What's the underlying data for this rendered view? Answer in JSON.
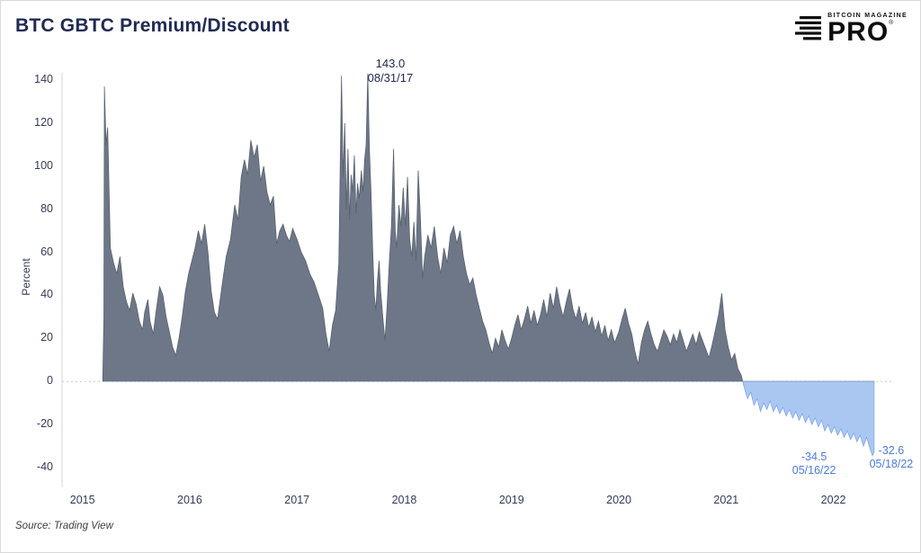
{
  "header": {
    "title": "BTC GBTC Premium/Discount"
  },
  "logo": {
    "brand": "BITCOIN MAGAZINE",
    "product": "PRO",
    "registered": "®"
  },
  "source": {
    "text": "Source: Trading View"
  },
  "chart_data": {
    "type": "area",
    "title": "BTC GBTC Premium/Discount",
    "xlabel": "",
    "ylabel": "Percent",
    "xlim": [
      2014.81,
      2022.54
    ],
    "ylim": [
      -40,
      140
    ],
    "yticks": [
      140,
      120,
      100,
      80,
      60,
      40,
      20,
      0,
      -20,
      -40
    ],
    "xticks": [
      2015,
      2016,
      2017,
      2018,
      2019,
      2020,
      2021,
      2022
    ],
    "grid": "zero-line-dotted",
    "legend": "none",
    "colors": {
      "positive_fill": "#6e7787",
      "positive_edge": "#59616f",
      "negative_fill": "#aac7f2",
      "negative_edge": "#7ea6e8",
      "annotation_dark": "#212a52",
      "annotation_blue": "#4d7cd6"
    },
    "annotations": [
      {
        "value_label": "143.0",
        "date_label": "08/31/17",
        "x": 2017.66,
        "y": 143,
        "color_key": "annotation_dark"
      },
      {
        "value_label": "-34.5",
        "date_label": "05/16/22",
        "x": 2022.365,
        "y": -34.5,
        "color_key": "annotation_blue"
      },
      {
        "value_label": "-32.6",
        "date_label": "05/18/22",
        "x": 2022.38,
        "y": -32.6,
        "color_key": "annotation_blue"
      }
    ],
    "points": [
      [
        2015.19,
        2
      ],
      [
        2015.2,
        30
      ],
      [
        2015.205,
        137
      ],
      [
        2015.22,
        110
      ],
      [
        2015.235,
        118
      ],
      [
        2015.26,
        62
      ],
      [
        2015.29,
        55
      ],
      [
        2015.32,
        50
      ],
      [
        2015.35,
        58
      ],
      [
        2015.38,
        44
      ],
      [
        2015.41,
        37
      ],
      [
        2015.44,
        33
      ],
      [
        2015.47,
        41
      ],
      [
        2015.5,
        36
      ],
      [
        2015.53,
        28
      ],
      [
        2015.56,
        24
      ],
      [
        2015.58,
        32
      ],
      [
        2015.61,
        38
      ],
      [
        2015.63,
        28
      ],
      [
        2015.66,
        22
      ],
      [
        2015.69,
        34
      ],
      [
        2015.72,
        44
      ],
      [
        2015.75,
        40
      ],
      [
        2015.78,
        30
      ],
      [
        2015.81,
        23
      ],
      [
        2015.84,
        16
      ],
      [
        2015.87,
        12
      ],
      [
        2015.9,
        20
      ],
      [
        2015.93,
        30
      ],
      [
        2015.96,
        42
      ],
      [
        2015.99,
        50
      ],
      [
        2016.02,
        56
      ],
      [
        2016.05,
        62
      ],
      [
        2016.08,
        70
      ],
      [
        2016.11,
        64
      ],
      [
        2016.14,
        73
      ],
      [
        2016.17,
        60
      ],
      [
        2016.2,
        42
      ],
      [
        2016.23,
        32
      ],
      [
        2016.26,
        29
      ],
      [
        2016.3,
        44
      ],
      [
        2016.34,
        58
      ],
      [
        2016.38,
        66
      ],
      [
        2016.42,
        82
      ],
      [
        2016.45,
        75
      ],
      [
        2016.48,
        95
      ],
      [
        2016.51,
        103
      ],
      [
        2016.54,
        96
      ],
      [
        2016.57,
        112
      ],
      [
        2016.6,
        104
      ],
      [
        2016.63,
        110
      ],
      [
        2016.66,
        93
      ],
      [
        2016.69,
        100
      ],
      [
        2016.72,
        88
      ],
      [
        2016.75,
        82
      ],
      [
        2016.78,
        86
      ],
      [
        2016.81,
        64
      ],
      [
        2016.84,
        70
      ],
      [
        2016.87,
        73
      ],
      [
        2016.9,
        68
      ],
      [
        2016.93,
        65
      ],
      [
        2016.96,
        71
      ],
      [
        2017.0,
        66
      ],
      [
        2017.04,
        60
      ],
      [
        2017.08,
        56
      ],
      [
        2017.12,
        50
      ],
      [
        2017.16,
        46
      ],
      [
        2017.2,
        40
      ],
      [
        2017.24,
        34
      ],
      [
        2017.27,
        22
      ],
      [
        2017.3,
        14
      ],
      [
        2017.33,
        26
      ],
      [
        2017.36,
        33
      ],
      [
        2017.39,
        55
      ],
      [
        2017.415,
        142
      ],
      [
        2017.43,
        95
      ],
      [
        2017.445,
        120
      ],
      [
        2017.46,
        80
      ],
      [
        2017.475,
        108
      ],
      [
        2017.49,
        75
      ],
      [
        2017.505,
        96
      ],
      [
        2017.52,
        88
      ],
      [
        2017.535,
        105
      ],
      [
        2017.55,
        78
      ],
      [
        2017.565,
        92
      ],
      [
        2017.58,
        85
      ],
      [
        2017.6,
        98
      ],
      [
        2017.615,
        88
      ],
      [
        2017.63,
        103
      ],
      [
        2017.645,
        110
      ],
      [
        2017.66,
        143
      ],
      [
        2017.675,
        108
      ],
      [
        2017.69,
        88
      ],
      [
        2017.705,
        62
      ],
      [
        2017.72,
        40
      ],
      [
        2017.735,
        33
      ],
      [
        2017.75,
        47
      ],
      [
        2017.765,
        56
      ],
      [
        2017.78,
        42
      ],
      [
        2017.8,
        30
      ],
      [
        2017.82,
        19
      ],
      [
        2017.84,
        35
      ],
      [
        2017.86,
        55
      ],
      [
        2017.88,
        72
      ],
      [
        2017.9,
        108
      ],
      [
        2017.915,
        70
      ],
      [
        2017.93,
        62
      ],
      [
        2017.95,
        82
      ],
      [
        2017.97,
        72
      ],
      [
        2017.99,
        90
      ],
      [
        2018.01,
        72
      ],
      [
        2018.03,
        95
      ],
      [
        2018.05,
        66
      ],
      [
        2018.07,
        58
      ],
      [
        2018.09,
        74
      ],
      [
        2018.11,
        56
      ],
      [
        2018.13,
        98
      ],
      [
        2018.15,
        76
      ],
      [
        2018.17,
        48
      ],
      [
        2018.19,
        58
      ],
      [
        2018.22,
        68
      ],
      [
        2018.25,
        62
      ],
      [
        2018.28,
        72
      ],
      [
        2018.31,
        58
      ],
      [
        2018.34,
        50
      ],
      [
        2018.37,
        62
      ],
      [
        2018.4,
        55
      ],
      [
        2018.43,
        68
      ],
      [
        2018.46,
        72
      ],
      [
        2018.49,
        64
      ],
      [
        2018.52,
        70
      ],
      [
        2018.55,
        58
      ],
      [
        2018.58,
        50
      ],
      [
        2018.61,
        45
      ],
      [
        2018.64,
        48
      ],
      [
        2018.67,
        40
      ],
      [
        2018.7,
        34
      ],
      [
        2018.73,
        28
      ],
      [
        2018.76,
        24
      ],
      [
        2018.79,
        18
      ],
      [
        2018.82,
        13
      ],
      [
        2018.85,
        20
      ],
      [
        2018.88,
        16
      ],
      [
        2018.91,
        24
      ],
      [
        2018.94,
        19
      ],
      [
        2018.97,
        15
      ],
      [
        2019.0,
        20
      ],
      [
        2019.03,
        26
      ],
      [
        2019.06,
        31
      ],
      [
        2019.09,
        24
      ],
      [
        2019.12,
        29
      ],
      [
        2019.15,
        35
      ],
      [
        2019.18,
        27
      ],
      [
        2019.21,
        33
      ],
      [
        2019.24,
        26
      ],
      [
        2019.27,
        31
      ],
      [
        2019.3,
        38
      ],
      [
        2019.33,
        30
      ],
      [
        2019.36,
        41
      ],
      [
        2019.39,
        34
      ],
      [
        2019.42,
        44
      ],
      [
        2019.45,
        36
      ],
      [
        2019.48,
        30
      ],
      [
        2019.51,
        37
      ],
      [
        2019.54,
        43
      ],
      [
        2019.57,
        34
      ],
      [
        2019.6,
        29
      ],
      [
        2019.63,
        35
      ],
      [
        2019.66,
        27
      ],
      [
        2019.69,
        32
      ],
      [
        2019.72,
        25
      ],
      [
        2019.75,
        30
      ],
      [
        2019.78,
        23
      ],
      [
        2019.81,
        28
      ],
      [
        2019.84,
        21
      ],
      [
        2019.87,
        26
      ],
      [
        2019.9,
        19
      ],
      [
        2019.93,
        24
      ],
      [
        2019.96,
        18
      ],
      [
        2020.0,
        23
      ],
      [
        2020.03,
        29
      ],
      [
        2020.06,
        34
      ],
      [
        2020.09,
        27
      ],
      [
        2020.12,
        22
      ],
      [
        2020.15,
        14
      ],
      [
        2020.18,
        8
      ],
      [
        2020.21,
        18
      ],
      [
        2020.24,
        24
      ],
      [
        2020.27,
        28
      ],
      [
        2020.3,
        22
      ],
      [
        2020.33,
        17
      ],
      [
        2020.36,
        14
      ],
      [
        2020.39,
        19
      ],
      [
        2020.42,
        24
      ],
      [
        2020.45,
        21
      ],
      [
        2020.48,
        17
      ],
      [
        2020.51,
        22
      ],
      [
        2020.54,
        18
      ],
      [
        2020.57,
        24
      ],
      [
        2020.6,
        19
      ],
      [
        2020.63,
        14
      ],
      [
        2020.66,
        18
      ],
      [
        2020.69,
        22
      ],
      [
        2020.72,
        17
      ],
      [
        2020.75,
        23
      ],
      [
        2020.78,
        19
      ],
      [
        2020.81,
        15
      ],
      [
        2020.84,
        11
      ],
      [
        2020.87,
        17
      ],
      [
        2020.9,
        24
      ],
      [
        2020.93,
        31
      ],
      [
        2020.96,
        41
      ],
      [
        2020.99,
        24
      ],
      [
        2021.02,
        16
      ],
      [
        2021.05,
        10
      ],
      [
        2021.08,
        13
      ],
      [
        2021.11,
        6
      ],
      [
        2021.14,
        3
      ],
      [
        2021.17,
        -3
      ],
      [
        2021.2,
        -8
      ],
      [
        2021.23,
        -5
      ],
      [
        2021.26,
        -11
      ],
      [
        2021.29,
        -8
      ],
      [
        2021.32,
        -14
      ],
      [
        2021.35,
        -10
      ],
      [
        2021.38,
        -13
      ],
      [
        2021.41,
        -9
      ],
      [
        2021.44,
        -14
      ],
      [
        2021.47,
        -11
      ],
      [
        2021.5,
        -15
      ],
      [
        2021.53,
        -12
      ],
      [
        2021.56,
        -16
      ],
      [
        2021.59,
        -13
      ],
      [
        2021.62,
        -17
      ],
      [
        2021.65,
        -14
      ],
      [
        2021.68,
        -18
      ],
      [
        2021.71,
        -15
      ],
      [
        2021.74,
        -19
      ],
      [
        2021.77,
        -16
      ],
      [
        2021.8,
        -20
      ],
      [
        2021.83,
        -17
      ],
      [
        2021.86,
        -21
      ],
      [
        2021.89,
        -18
      ],
      [
        2021.92,
        -23
      ],
      [
        2021.95,
        -20
      ],
      [
        2021.98,
        -24
      ],
      [
        2022.01,
        -21
      ],
      [
        2022.04,
        -25
      ],
      [
        2022.07,
        -22
      ],
      [
        2022.1,
        -26
      ],
      [
        2022.13,
        -23
      ],
      [
        2022.16,
        -27
      ],
      [
        2022.19,
        -24
      ],
      [
        2022.22,
        -28
      ],
      [
        2022.25,
        -25
      ],
      [
        2022.28,
        -30
      ],
      [
        2022.31,
        -26
      ],
      [
        2022.34,
        -31
      ],
      [
        2022.365,
        -34.5
      ],
      [
        2022.38,
        -32.6
      ]
    ]
  }
}
